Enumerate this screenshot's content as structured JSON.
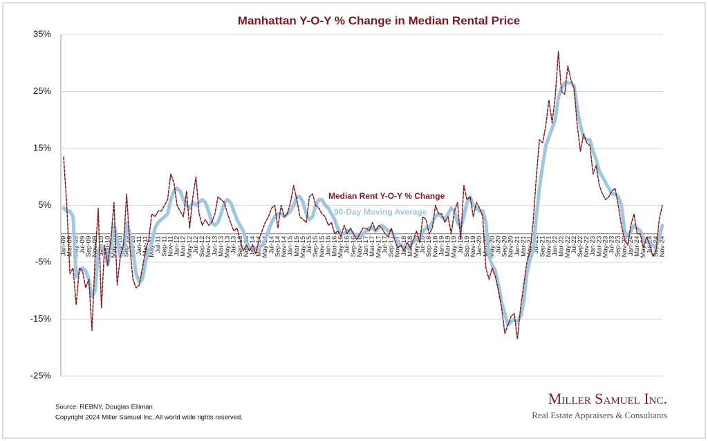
{
  "chart_data": {
    "type": "line",
    "title": "Manhattan Y-O-Y % Change in Median Rental Price",
    "categories": [
      "Jan-09",
      null,
      "Mar-09",
      null,
      "May-09",
      null,
      "Jul-09",
      null,
      "Sep-09",
      null,
      "Nov-09",
      null,
      "Jan-10",
      null,
      "Mar-10",
      null,
      "May-10",
      null,
      "Jul-10",
      null,
      "Sep-10",
      null,
      "Nov-10",
      null,
      "Jan-11",
      null,
      "Mar-11",
      null,
      "May-11",
      null,
      "Jul-11",
      null,
      "Sep-11",
      null,
      "Nov-11",
      null,
      "Jan-12",
      null,
      "Mar-12",
      null,
      "May-12",
      null,
      "Jul-12",
      null,
      "Sep-12",
      null,
      "Nov-12",
      null,
      "Jan-13",
      null,
      "Mar-13",
      null,
      "May-13",
      null,
      "Jul-13",
      null,
      "Sep-13",
      null,
      "Nov-13",
      null,
      "Jan-14",
      null,
      "Mar-14",
      null,
      "May-14",
      null,
      "Jul-14",
      null,
      "Sep-14",
      null,
      "Nov-14",
      null,
      "Jan-15",
      null,
      "Mar-15",
      null,
      "May-15",
      null,
      "Jul-15",
      null,
      "Sep-15",
      null,
      "Nov-15",
      null,
      "Jan-16",
      null,
      "Mar-16",
      null,
      "May-16",
      null,
      "Jul-16",
      null,
      "Sep-16",
      null,
      "Nov-16",
      null,
      "Jan-17",
      null,
      "Mar-17",
      null,
      "May-17",
      null,
      "Jul-17",
      null,
      "Sep-17",
      null,
      "Nov-17",
      null,
      "Jan-18",
      null,
      "Mar-18",
      null,
      "May-18",
      null,
      "Jul-18",
      null,
      "Sep-18",
      null,
      "Nov-18",
      null,
      "Jan-19",
      null,
      "Mar-19",
      null,
      "May-19",
      null,
      "Jul-19",
      null,
      "Sep-19",
      null,
      "Nov-19",
      null,
      "Jan-20",
      null,
      "Mar-20",
      null,
      "May-20",
      null,
      "Jul-20",
      null,
      "Sep-20",
      null,
      "Nov-20",
      null,
      "Jan-21",
      null,
      "Mar-21",
      null,
      "May-21",
      null,
      "Jul-21",
      null,
      "Sep-21",
      null,
      "Nov-21",
      null,
      "Jan-22",
      null,
      "Mar-22",
      null,
      "May-22",
      null,
      "Jul-22",
      null,
      "Sep-22",
      null,
      "Nov-22",
      null,
      "Jan-23",
      null,
      "Mar-23",
      null,
      "May-23",
      null,
      "Jul-23",
      null,
      "Sep-23",
      null,
      "Nov-23",
      null,
      "Jan-24",
      null,
      "Mar-24",
      null,
      "May-24",
      null,
      "Jul-24",
      null,
      "Sep-24",
      null,
      "Nov-24"
    ],
    "series": [
      {
        "name": "Median Rent Y-O-Y % Change",
        "color": "#7a1a1f",
        "dashed": true,
        "values": [
          13.5,
          5,
          -7,
          -6,
          -12.5,
          -6,
          -6.5,
          -9.5,
          -8,
          -17,
          -4,
          4.5,
          -13,
          -2,
          -5.5,
          -1,
          5.5,
          -9,
          -4,
          -2,
          7,
          -2,
          -8,
          -9.5,
          -9,
          -6,
          -3,
          -1,
          3.5,
          3,
          4,
          4,
          5,
          6,
          10.5,
          9,
          5,
          4,
          3,
          7.5,
          1,
          6.5,
          10,
          3.5,
          1.5,
          2.5,
          1.5,
          2,
          3.5,
          6.5,
          6,
          5.5,
          3.5,
          2,
          0.5,
          1,
          -1,
          -3,
          -2,
          -3,
          -2,
          -3.5,
          -1,
          0.5,
          2,
          3,
          4.5,
          5,
          1,
          5,
          3,
          3.5,
          5.5,
          8.5,
          6,
          3,
          2.5,
          2,
          6.5,
          7,
          5,
          4.5,
          3.5,
          3,
          1.5,
          2,
          0,
          0.5,
          -0.5,
          1.5,
          0,
          1,
          0,
          -1,
          0,
          1,
          1,
          0.5,
          2,
          0.5,
          1.5,
          1,
          0,
          -0.5,
          1,
          -1,
          -2.5,
          -2,
          -3,
          -1.5,
          -2.5,
          -1,
          0.5,
          -1.5,
          3,
          2.5,
          0,
          1,
          5,
          3.5,
          3.5,
          2,
          3,
          0,
          4,
          5.5,
          -1,
          8.5,
          6,
          6.5,
          3,
          5.5,
          4.5,
          3,
          -6,
          -8,
          -6,
          -7.5,
          -10,
          -13,
          -17.5,
          -16,
          -14.5,
          -14,
          -18.5,
          -13,
          -9,
          -5,
          -3,
          2,
          10,
          16.5,
          16,
          19,
          23.5,
          19.5,
          24,
          32,
          25,
          24.5,
          29.5,
          27,
          25.5,
          19,
          14.5,
          17.5,
          16,
          15.5,
          10.5,
          12,
          8.5,
          7,
          6,
          6.5,
          7.5,
          8,
          5,
          1.5,
          -1,
          -2,
          1.5,
          3.5,
          0,
          0,
          -2.5,
          -0.5,
          -2,
          -4,
          -3,
          2.5,
          5
        ]
      },
      {
        "name": "90-Day Moving Average",
        "color": "#9fc7df",
        "dashed": false,
        "values": [
          4.5,
          4,
          4,
          3,
          -7.5,
          -6.5,
          -6,
          -6.5,
          -8,
          -11,
          -10,
          -3,
          -2,
          -3,
          -5.5,
          -2,
          1.5,
          -1,
          -4,
          -3,
          2,
          0,
          -3,
          -7,
          -8.5,
          -8,
          -5,
          -3,
          -1.5,
          1,
          2,
          2.5,
          3,
          3.5,
          6,
          7.5,
          8,
          7.5,
          6,
          5,
          4.5,
          5.5,
          5,
          5.5,
          6,
          5.5,
          4,
          2,
          1.5,
          2,
          3.5,
          5.5,
          6,
          5.5,
          4,
          2.5,
          1.5,
          0.5,
          -1.5,
          -2.5,
          -2.5,
          -2.5,
          -2.5,
          -2,
          -1,
          0.5,
          2,
          3,
          3.5,
          3.5,
          3,
          3.5,
          4,
          5,
          6.5,
          6.5,
          5.5,
          3.5,
          2.5,
          3,
          5,
          6,
          6,
          5,
          4.5,
          3.5,
          2.5,
          1,
          0,
          0,
          0.5,
          0.5,
          0,
          -0.5,
          -0.5,
          0,
          0.5,
          1,
          1,
          0.5,
          1,
          1.5,
          1,
          0.5,
          0.5,
          -0.5,
          -1.5,
          -2,
          -2.5,
          -2.5,
          -2,
          -1.5,
          -1,
          -1,
          0.5,
          1,
          1,
          2,
          3,
          3.5,
          3,
          2.5,
          3.5,
          4.5,
          4,
          2,
          1,
          3,
          5.5,
          6.5,
          5,
          4.5,
          4,
          4,
          2,
          -4,
          -5.5,
          -6.5,
          -9,
          -12,
          -14,
          -16,
          -15.5,
          -15,
          -15.5,
          -14.5,
          -12,
          -7,
          -4.5,
          -3,
          3,
          8,
          12,
          15.5,
          17,
          18.5,
          20,
          24,
          25.5,
          26.5,
          26.5,
          26.5,
          26,
          22,
          19,
          17,
          16.5,
          16.5,
          14.5,
          13,
          11,
          10,
          9,
          8,
          7,
          7,
          6.5,
          5,
          0.5,
          -0.5,
          0.5,
          1.5,
          1,
          0.5,
          -1,
          -1.5,
          -1.5,
          -2,
          -2.5,
          -0.5,
          1.5
        ]
      }
    ],
    "ylim": [
      -25,
      35
    ],
    "yticks": [
      {
        "value": -25,
        "label": "-25%"
      },
      {
        "value": -15,
        "label": "-15%"
      },
      {
        "value": -5,
        "label": "-5%"
      },
      {
        "value": 5,
        "label": "5%"
      },
      {
        "value": 15,
        "label": "15%"
      },
      {
        "value": 25,
        "label": "25%"
      },
      {
        "value": 35,
        "label": "35%"
      }
    ],
    "grid": true
  },
  "footer": {
    "source": "Source: REBNY, Douglas Elliman",
    "copyright": "Copyright 2024 Miller Samuel Inc.  All world wide rights reserved.",
    "brand": "Miller Samuel Inc.",
    "tagline": "Real Estate Appraisers & Consultants"
  }
}
